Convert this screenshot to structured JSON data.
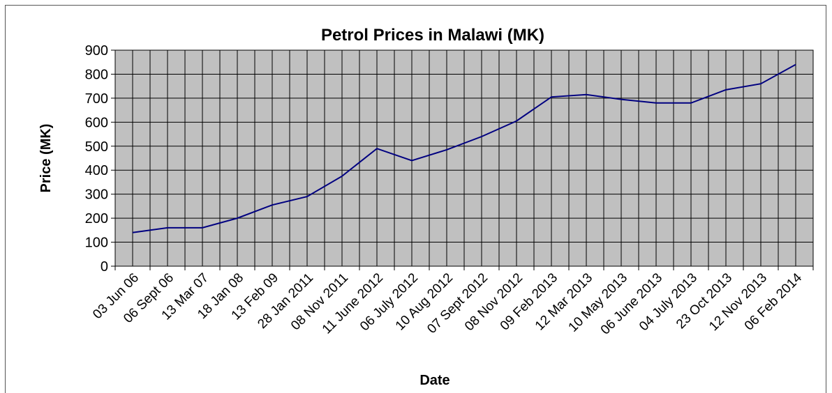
{
  "chart_data": {
    "type": "line",
    "title": "Petrol Prices in Malawi (MK)",
    "x_label": "Date",
    "y_label": "Price (MK)",
    "categories": [
      "03 Jun 06",
      "06 Sept 06",
      "13 Mar 07",
      "18 Jan 08",
      "13 Feb 09",
      "28 Jan 2011",
      "08 Nov 2011",
      "11 June 2012",
      "06 July 2012",
      "10 Aug 2012",
      "07 Sept 2012",
      "08 Nov 2012",
      "09 Feb 2013",
      "12 Mar 2013",
      "10 May 2013",
      "06 June 2013",
      "04 July 2013",
      "23 Oct 2013",
      "12 Nov 2013",
      "06 Feb 2014"
    ],
    "values": [
      140,
      160,
      160,
      200,
      255,
      290,
      375,
      490,
      440,
      485,
      540,
      605,
      705,
      715,
      695,
      680,
      680,
      735,
      760,
      840
    ],
    "color": "#000080",
    "ylim": [
      0,
      900
    ],
    "yticks": [
      0,
      100,
      200,
      300,
      400,
      500,
      600,
      700,
      800,
      900
    ],
    "grid": true
  }
}
